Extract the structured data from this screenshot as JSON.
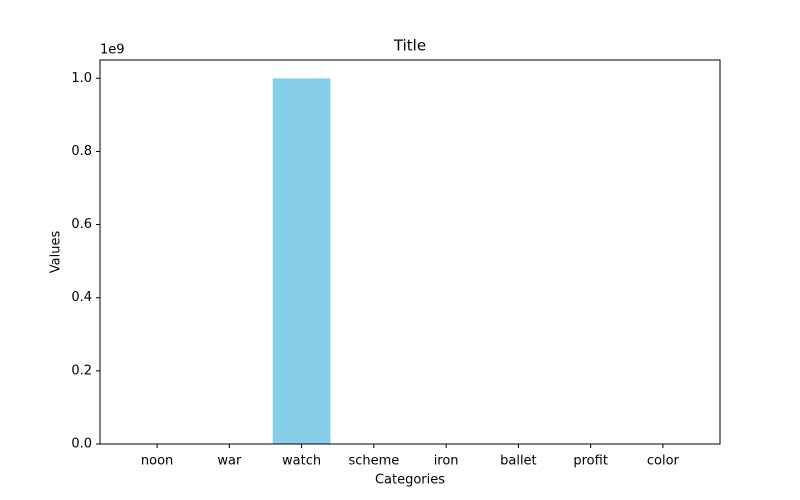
{
  "chart_data": {
    "type": "bar",
    "title": "Title",
    "xlabel": "Categories",
    "ylabel": "Values",
    "y_offset_label": "1e9",
    "categories": [
      "noon",
      "war",
      "watch",
      "scheme",
      "iron",
      "ballet",
      "profit",
      "color"
    ],
    "values": [
      0,
      0,
      1000000000,
      0,
      0,
      0,
      0,
      0
    ],
    "color": "#87ceeb",
    "ylim": [
      0,
      1050000000
    ],
    "yticks": [
      {
        "value": 0,
        "label": "0.0"
      },
      {
        "value": 200000000,
        "label": "0.2"
      },
      {
        "value": 400000000,
        "label": "0.4"
      },
      {
        "value": 600000000,
        "label": "0.6"
      },
      {
        "value": 800000000,
        "label": "0.8"
      },
      {
        "value": 1000000000,
        "label": "1.0"
      }
    ],
    "grid": false
  }
}
